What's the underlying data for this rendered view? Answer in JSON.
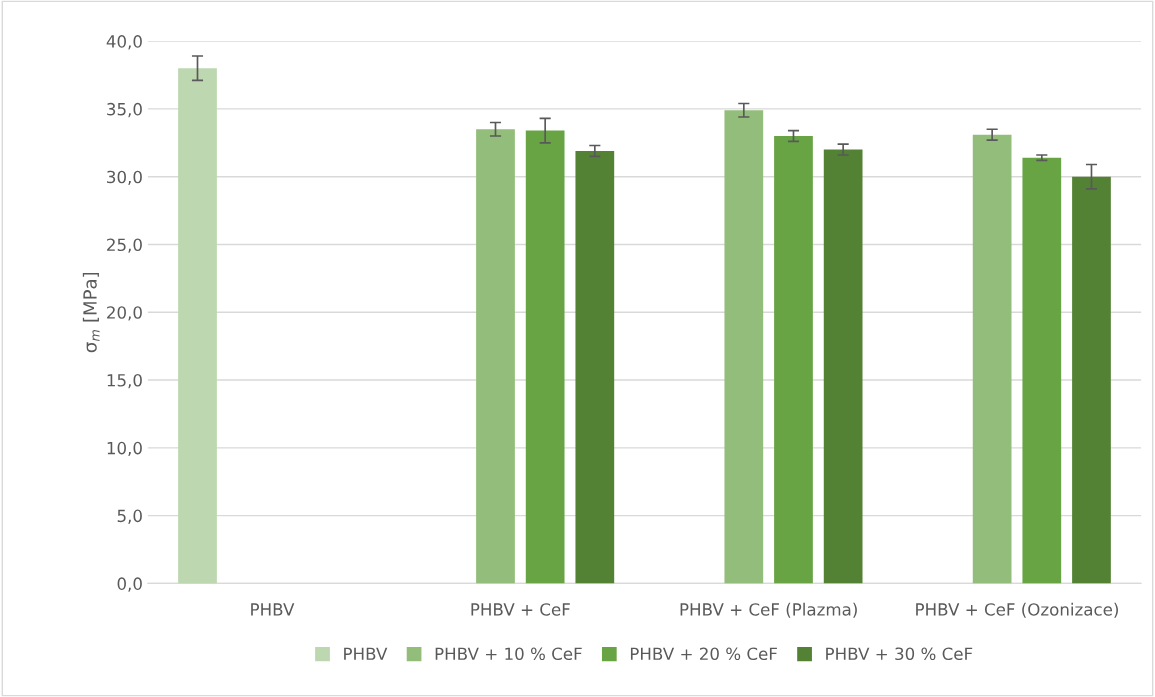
{
  "chart_data": {
    "type": "bar",
    "ylabel": "σ$_{m}$ [MPa]",
    "categories": [
      "PHBV",
      "PHBV + CeF",
      "PHBV + CeF (Plazma)",
      "PHBV + CeF (Ozonizace)"
    ],
    "series": [
      {
        "name": "PHBV",
        "color": "#bdd7b0",
        "values": [
          38.0,
          null,
          null,
          null
        ],
        "errors": [
          0.9,
          null,
          null,
          null
        ]
      },
      {
        "name": "PHBV + 10 % CeF",
        "color": "#93bd7a",
        "values": [
          null,
          33.5,
          34.9,
          33.1
        ],
        "errors": [
          null,
          0.5,
          0.5,
          0.4
        ]
      },
      {
        "name": "PHBV + 20 % CeF",
        "color": "#68a444",
        "values": [
          null,
          33.4,
          33.0,
          31.4
        ],
        "errors": [
          null,
          0.9,
          0.4,
          0.2
        ]
      },
      {
        "name": "PHBV + 30 % CeF",
        "color": "#548235",
        "values": [
          null,
          31.9,
          32.0,
          30.0
        ],
        "errors": [
          null,
          0.4,
          0.4,
          0.9
        ]
      }
    ],
    "ylim": [
      0,
      40
    ],
    "yticks": [
      {
        "value": 0,
        "label": "0,0"
      },
      {
        "value": 5,
        "label": "5,0"
      },
      {
        "value": 10,
        "label": "10,0"
      },
      {
        "value": 15,
        "label": "15,0"
      },
      {
        "value": 20,
        "label": "20,0"
      },
      {
        "value": 25,
        "label": "25,0"
      },
      {
        "value": 30,
        "label": "30,0"
      },
      {
        "value": 35,
        "label": "35,0"
      },
      {
        "value": 40,
        "label": "40,0"
      }
    ],
    "grid": "y",
    "legend": "bottom"
  }
}
